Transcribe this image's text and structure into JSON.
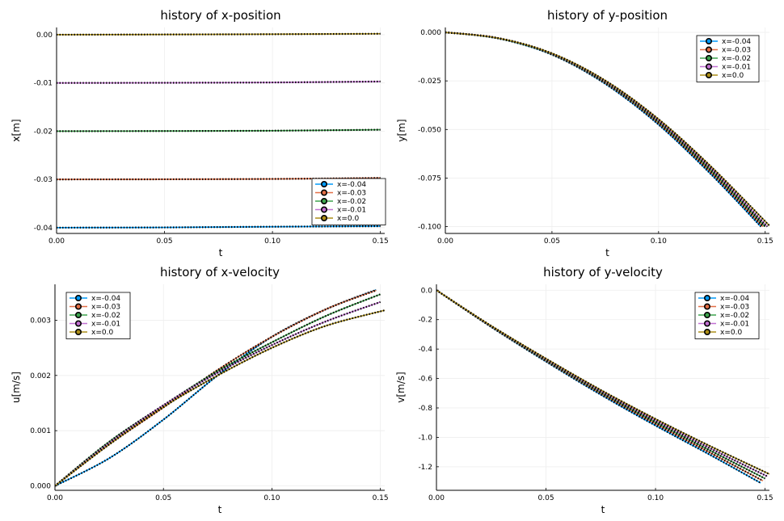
{
  "colors": {
    "series": [
      "#009AFA",
      "#E36F47",
      "#3EA44E",
      "#C271D2",
      "#AC8E18"
    ],
    "marker": "#000000",
    "grid": "#eeeeee"
  },
  "chart_data": [
    {
      "type": "line",
      "title": "history of x-position",
      "xlabel": "t",
      "ylabel": "x[m]",
      "xlim": [
        0,
        0.152
      ],
      "ylim": [
        -0.0412,
        0.0015
      ],
      "xticks": [
        0,
        0.05,
        0.1,
        0.15
      ],
      "xtick_labels": [
        "0.00",
        "0.05",
        "0.10",
        "0.15"
      ],
      "yticks": [
        -0.04,
        -0.03,
        -0.02,
        -0.01,
        0
      ],
      "ytick_labels": [
        "-0.04",
        "-0.03",
        "-0.02",
        "-0.01",
        "0.00"
      ],
      "legend_position": "bottom-right",
      "t_end": 0.15,
      "series": [
        {
          "name": "x=-0.04",
          "x": [
            0,
            0.05,
            0.1,
            0.15
          ],
          "y": [
            -0.04,
            -0.03995,
            -0.0398,
            -0.0397
          ]
        },
        {
          "name": "x=-0.03",
          "x": [
            0,
            0.05,
            0.1,
            0.15
          ],
          "y": [
            -0.03,
            -0.02997,
            -0.0299,
            -0.0297
          ]
        },
        {
          "name": "x=-0.02",
          "x": [
            0,
            0.05,
            0.1,
            0.15
          ],
          "y": [
            -0.02,
            -0.01997,
            -0.0199,
            -0.0197
          ]
        },
        {
          "name": "x=-0.01",
          "x": [
            0,
            0.05,
            0.1,
            0.15
          ],
          "y": [
            -0.01,
            -0.00997,
            -0.0099,
            -0.0097
          ]
        },
        {
          "name": "x=0.0",
          "x": [
            0,
            0.05,
            0.1,
            0.15
          ],
          "y": [
            0,
            5e-05,
            0.0001,
            0.0002
          ]
        }
      ]
    },
    {
      "type": "line",
      "title": "history of y-position",
      "xlabel": "t",
      "ylabel": "y[m]",
      "xlim": [
        0,
        0.152
      ],
      "ylim": [
        -0.1035,
        0.0025
      ],
      "xticks": [
        0,
        0.05,
        0.1,
        0.15
      ],
      "xtick_labels": [
        "0.00",
        "0.05",
        "0.10",
        "0.15"
      ],
      "yticks": [
        -0.1,
        -0.075,
        -0.05,
        -0.025,
        0
      ],
      "ytick_labels": [
        "-0.100",
        "-0.075",
        "-0.050",
        "-0.025",
        "0.000"
      ],
      "legend_position": "top-right",
      "series": [
        {
          "name": "x=-0.04",
          "x": [
            0,
            0.025,
            0.05,
            0.075,
            0.1,
            0.125,
            0.148
          ],
          "y": [
            0,
            -0.0032,
            -0.0115,
            -0.0265,
            -0.0475,
            -0.0735,
            -0.1
          ]
        },
        {
          "name": "x=-0.03",
          "x": [
            0,
            0.025,
            0.05,
            0.075,
            0.1,
            0.125,
            0.149
          ],
          "y": [
            0,
            -0.0031,
            -0.0113,
            -0.026,
            -0.0468,
            -0.0725,
            -0.1
          ]
        },
        {
          "name": "x=-0.02",
          "x": [
            0,
            0.025,
            0.05,
            0.075,
            0.1,
            0.125,
            0.15
          ],
          "y": [
            0,
            -0.0031,
            -0.0112,
            -0.0256,
            -0.0461,
            -0.0715,
            -0.1
          ]
        },
        {
          "name": "x=-0.01",
          "x": [
            0,
            0.025,
            0.05,
            0.075,
            0.1,
            0.125,
            0.151
          ],
          "y": [
            0,
            -0.003,
            -0.011,
            -0.0252,
            -0.0454,
            -0.0705,
            -0.1
          ]
        },
        {
          "name": "x=0.0",
          "x": [
            0,
            0.025,
            0.05,
            0.075,
            0.1,
            0.125,
            0.152
          ],
          "y": [
            0,
            -0.003,
            -0.0108,
            -0.0248,
            -0.0447,
            -0.0695,
            -0.0995
          ]
        }
      ]
    },
    {
      "type": "line",
      "title": "history of x-velocity",
      "xlabel": "t",
      "ylabel": "u[m/s]",
      "xlim": [
        0,
        0.152
      ],
      "ylim": [
        -8e-05,
        0.00365
      ],
      "xticks": [
        0,
        0.05,
        0.1,
        0.15
      ],
      "xtick_labels": [
        "0.00",
        "0.05",
        "0.10",
        "0.15"
      ],
      "yticks": [
        0,
        0.001,
        0.002,
        0.003
      ],
      "ytick_labels": [
        "0.000",
        "0.001",
        "0.002",
        "0.003"
      ],
      "legend_position": "top-left",
      "series": [
        {
          "name": "x=-0.04",
          "x": [
            0,
            0.025,
            0.05,
            0.075,
            0.1,
            0.125,
            0.148
          ],
          "y": [
            0,
            0.0005,
            0.0012,
            0.002,
            0.0027,
            0.0032,
            0.00355
          ]
        },
        {
          "name": "x=-0.03",
          "x": [
            0,
            0.025,
            0.05,
            0.075,
            0.1,
            0.125,
            0.148
          ],
          "y": [
            0,
            0.00075,
            0.00142,
            0.0021,
            0.0027,
            0.0032,
            0.00354
          ]
        },
        {
          "name": "x=-0.02",
          "x": [
            0,
            0.025,
            0.05,
            0.075,
            0.1,
            0.125,
            0.15
          ],
          "y": [
            0,
            0.0008,
            0.00146,
            0.00208,
            0.0026,
            0.00308,
            0.00347
          ]
        },
        {
          "name": "x=-0.01",
          "x": [
            0,
            0.025,
            0.05,
            0.075,
            0.1,
            0.125,
            0.15
          ],
          "y": [
            0,
            0.00078,
            0.00146,
            0.00205,
            0.00255,
            0.00298,
            0.00333
          ]
        },
        {
          "name": "x=0.0",
          "x": [
            0,
            0.025,
            0.05,
            0.075,
            0.1,
            0.125,
            0.152
          ],
          "y": [
            0,
            0.00075,
            0.00143,
            0.002,
            0.0025,
            0.0029,
            0.00318
          ]
        }
      ]
    },
    {
      "type": "line",
      "title": "history of y-velocity",
      "xlabel": "t",
      "ylabel": "v[m/s]",
      "xlim": [
        0,
        0.152
      ],
      "ylim": [
        -1.36,
        0.04
      ],
      "xticks": [
        0,
        0.05,
        0.1,
        0.15
      ],
      "xtick_labels": [
        "0.00",
        "0.05",
        "0.10",
        "0.15"
      ],
      "yticks": [
        -1.2,
        -1.0,
        -0.8,
        -0.6,
        -0.4,
        -0.2,
        0
      ],
      "ytick_labels": [
        "-1.2",
        "-1.0",
        "-0.8",
        "-0.6",
        "-0.4",
        "-0.2",
        "0.0"
      ],
      "legend_position": "top-right",
      "series": [
        {
          "name": "x=-0.04",
          "x": [
            0,
            0.025,
            0.05,
            0.075,
            0.1,
            0.125,
            0.148
          ],
          "y": [
            0,
            -0.25,
            -0.485,
            -0.71,
            -0.92,
            -1.12,
            -1.31
          ]
        },
        {
          "name": "x=-0.03",
          "x": [
            0,
            0.025,
            0.05,
            0.075,
            0.1,
            0.125,
            0.149
          ],
          "y": [
            0,
            -0.248,
            -0.48,
            -0.702,
            -0.908,
            -1.105,
            -1.295
          ]
        },
        {
          "name": "x=-0.02",
          "x": [
            0,
            0.025,
            0.05,
            0.075,
            0.1,
            0.125,
            0.15
          ],
          "y": [
            0,
            -0.246,
            -0.475,
            -0.694,
            -0.897,
            -1.09,
            -1.28
          ]
        },
        {
          "name": "x=-0.01",
          "x": [
            0,
            0.025,
            0.05,
            0.075,
            0.1,
            0.125,
            0.151
          ],
          "y": [
            0,
            -0.244,
            -0.47,
            -0.686,
            -0.886,
            -1.075,
            -1.265
          ]
        },
        {
          "name": "x=0.0",
          "x": [
            0,
            0.025,
            0.05,
            0.075,
            0.1,
            0.125,
            0.152
          ],
          "y": [
            0,
            -0.242,
            -0.465,
            -0.678,
            -0.875,
            -1.06,
            -1.25
          ]
        }
      ]
    }
  ]
}
